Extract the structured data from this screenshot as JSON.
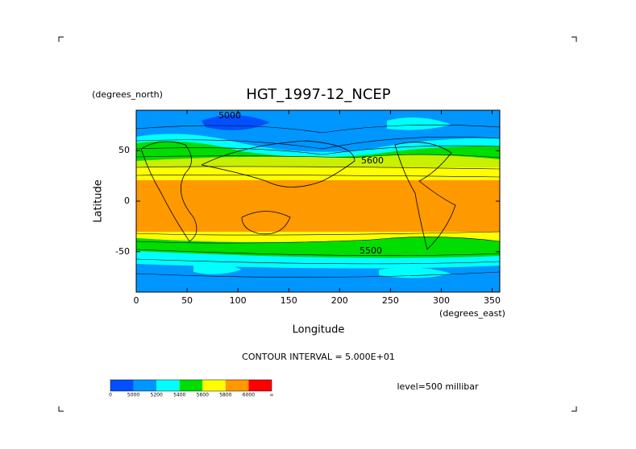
{
  "chart_data": {
    "type": "contour-map",
    "title": "HGT_1997-12_NCEP",
    "y_unit_label": "(degrees_north)",
    "y_label": "Latitude",
    "x_label": "Longitude",
    "x_unit_label": "(degrees_east)",
    "xlim": [
      0,
      357.5
    ],
    "ylim": [
      -90,
      90
    ],
    "xticks": [
      0,
      50,
      100,
      150,
      200,
      250,
      300,
      350
    ],
    "yticks": [
      -50,
      0,
      50
    ],
    "contour_note": "CONTOUR INTERVAL = 5.000E+01",
    "level_note": "level=500 millibar",
    "contour_labels": [
      "5000",
      "5600",
      "5500"
    ],
    "colorbar": {
      "colors": [
        "#0050ff",
        "#0096ff",
        "#00ffff",
        "#00dd00",
        "#ffff00",
        "#ff9900",
        "#ff0000"
      ],
      "labels": [
        "0",
        "5000",
        "5200",
        "5400",
        "5600",
        "5800",
        "6000",
        "∞"
      ]
    }
  }
}
